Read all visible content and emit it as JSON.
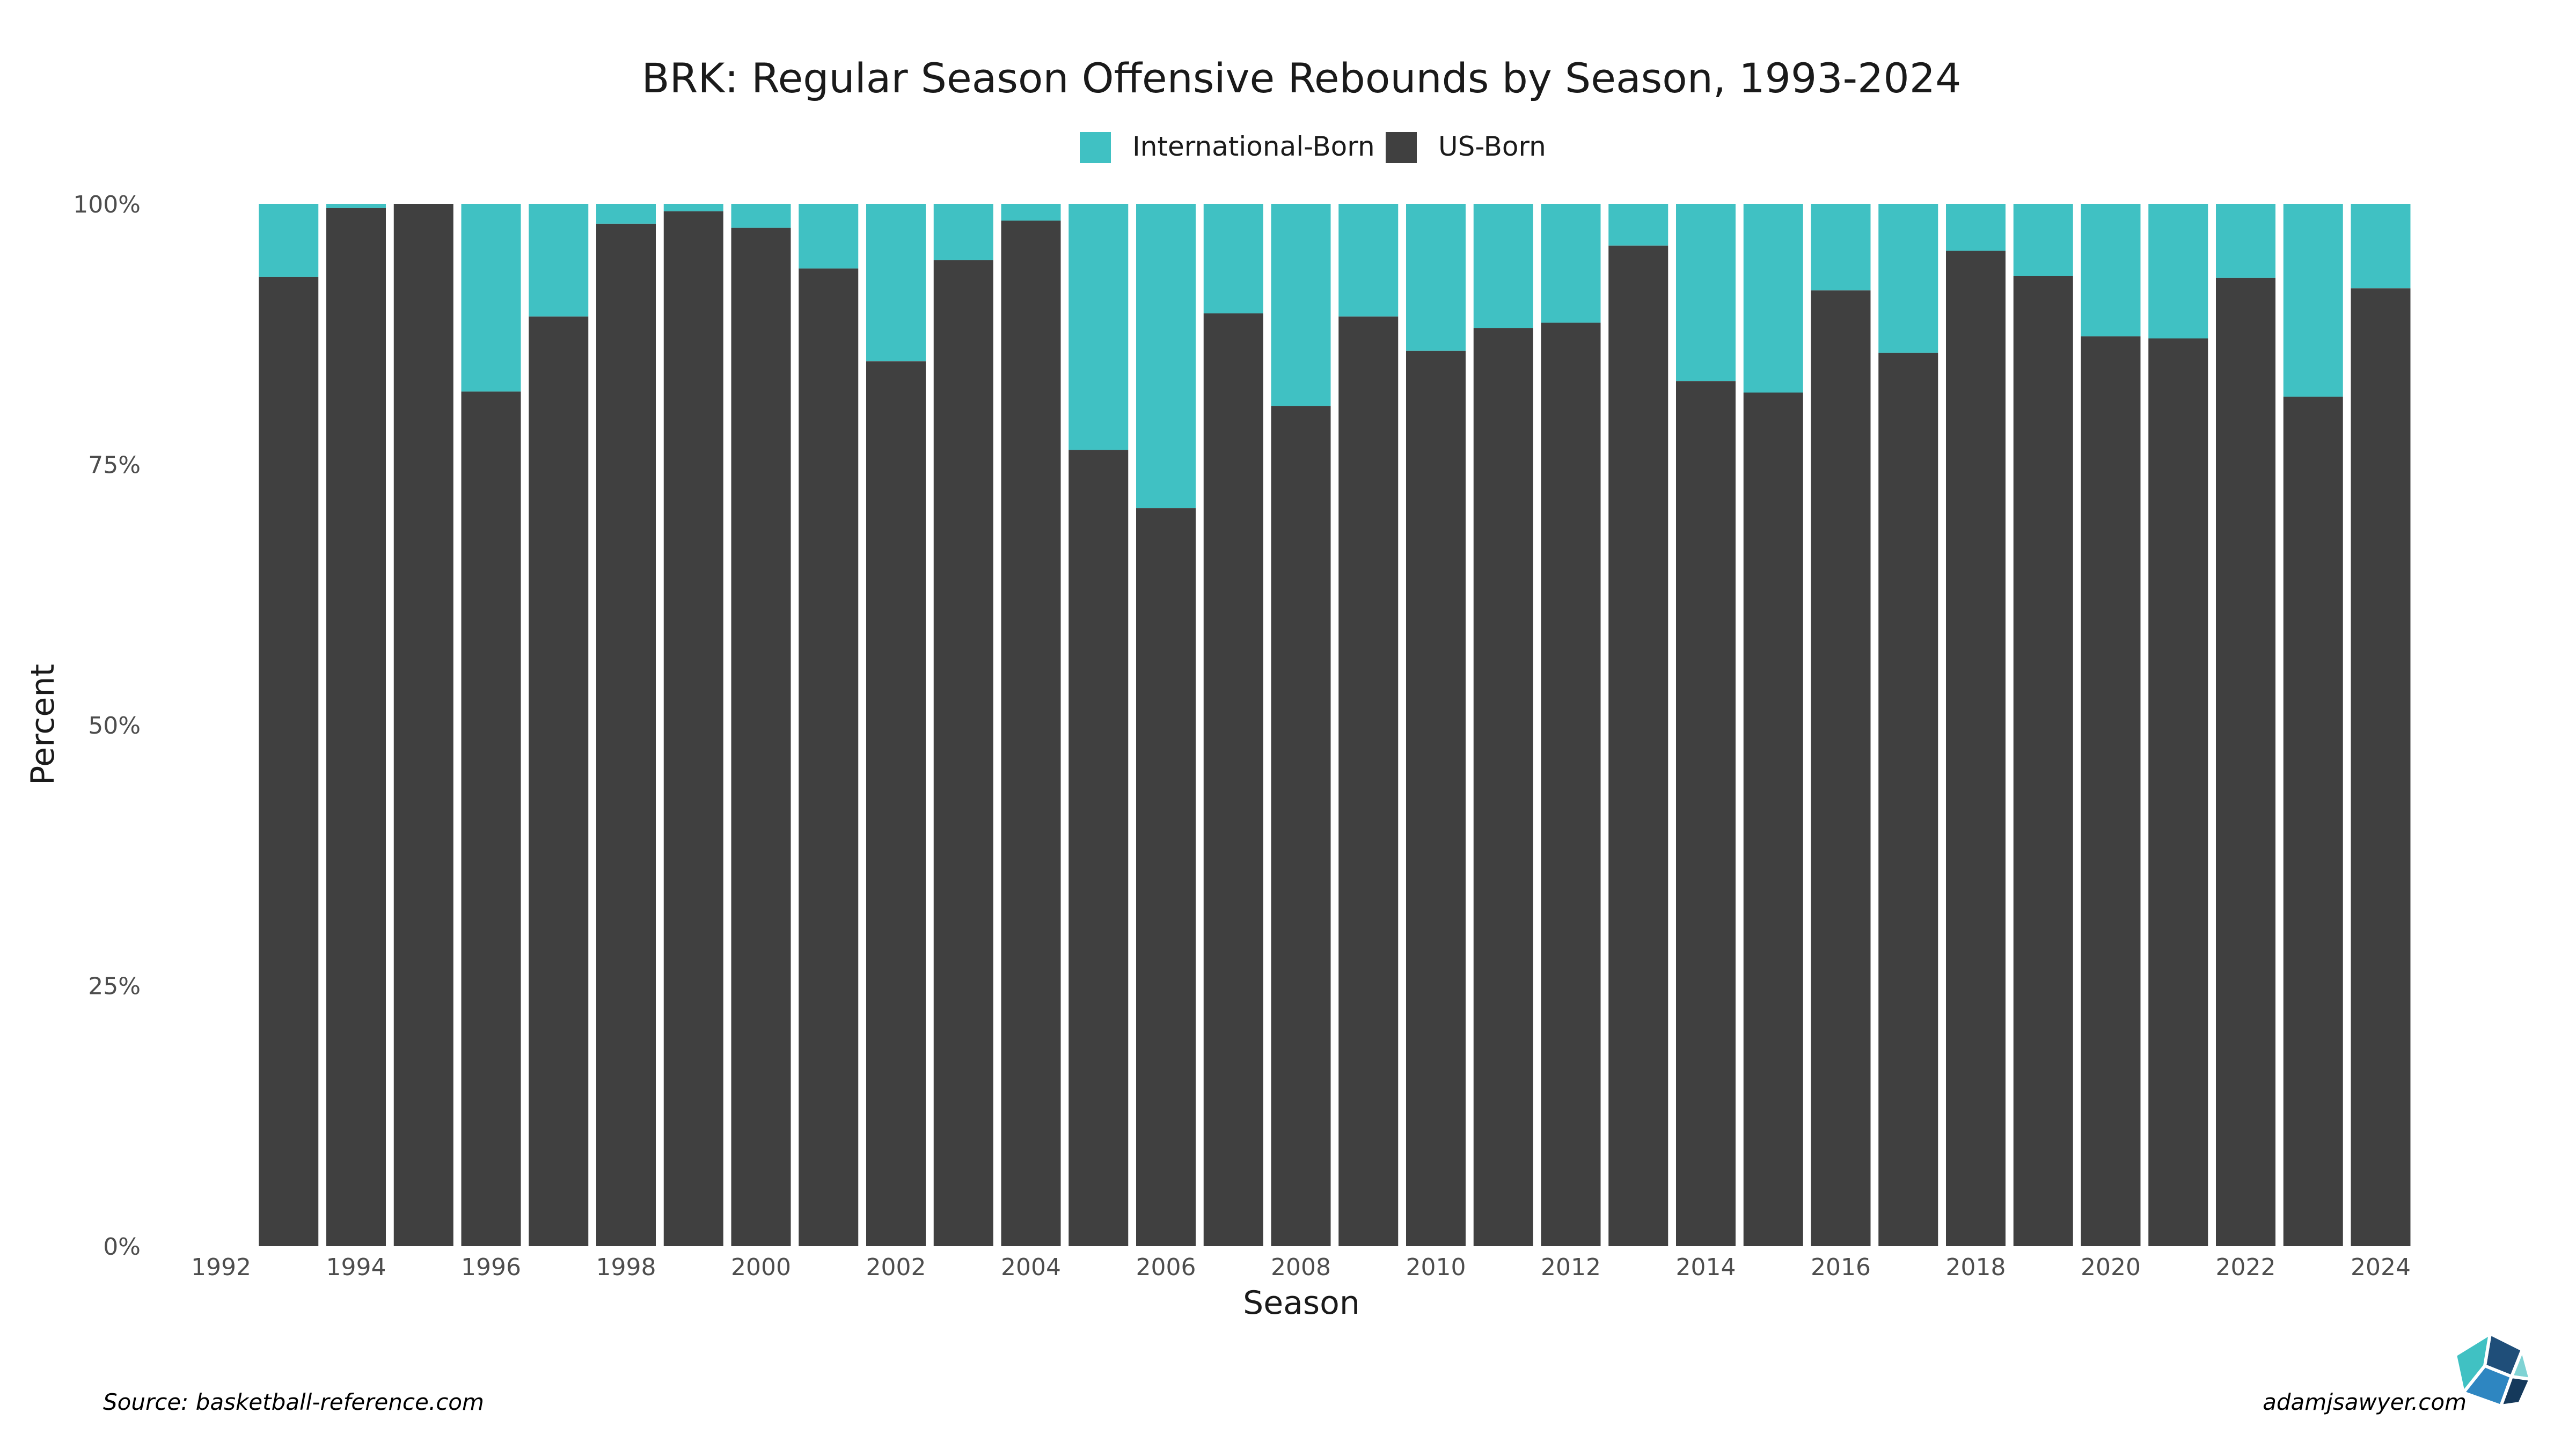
{
  "colors": {
    "international": "#40c1c3",
    "us": "#404040",
    "logo": [
      "#1f4e79",
      "#2e86c1",
      "#40c1c3",
      "#7fd3d4",
      "#15395b"
    ]
  },
  "source_label": "Source: basketball-reference.com",
  "credit_label": "adamjsawyer.com",
  "chart_data": {
    "type": "bar",
    "stacked": true,
    "normalized": true,
    "title": "BRK: Regular Season Offensive Rebounds by Season, 1993-2024",
    "xlabel": "Season",
    "ylabel": "Percent",
    "legend_position": "top",
    "x": [
      1993,
      1994,
      1995,
      1996,
      1997,
      1998,
      1999,
      2000,
      2001,
      2002,
      2003,
      2004,
      2005,
      2006,
      2007,
      2008,
      2009,
      2010,
      2011,
      2012,
      2013,
      2014,
      2015,
      2016,
      2017,
      2018,
      2019,
      2020,
      2021,
      2022,
      2023,
      2024
    ],
    "xlim": [
      1992,
      2024
    ],
    "x_ticks": [
      "1992",
      "1994",
      "1996",
      "1998",
      "2000",
      "2002",
      "2004",
      "2006",
      "2008",
      "2010",
      "2012",
      "2014",
      "2016",
      "2018",
      "2020",
      "2022",
      "2024"
    ],
    "ylim": [
      0,
      100
    ],
    "y_ticks": [
      "0%",
      "25%",
      "50%",
      "75%",
      "100%"
    ],
    "grid": false,
    "series": [
      {
        "name": "International-Born",
        "values": [
          7.0,
          0.4,
          0.0,
          18.0,
          10.8,
          1.9,
          0.7,
          2.3,
          6.2,
          15.1,
          5.4,
          1.6,
          23.6,
          29.2,
          10.5,
          19.4,
          10.8,
          14.1,
          11.9,
          11.4,
          4.0,
          17.0,
          18.1,
          8.3,
          14.3,
          4.5,
          6.9,
          12.7,
          12.9,
          7.1,
          18.5,
          8.1
        ]
      },
      {
        "name": "US-Born",
        "values": [
          93.0,
          99.6,
          100.0,
          82.0,
          89.2,
          98.1,
          99.3,
          97.7,
          93.8,
          84.9,
          94.6,
          98.4,
          76.4,
          70.8,
          89.5,
          80.6,
          89.2,
          85.9,
          88.1,
          88.6,
          96.0,
          83.0,
          81.9,
          91.7,
          85.7,
          95.5,
          93.1,
          87.3,
          87.1,
          92.9,
          81.5,
          91.9
        ]
      }
    ]
  }
}
